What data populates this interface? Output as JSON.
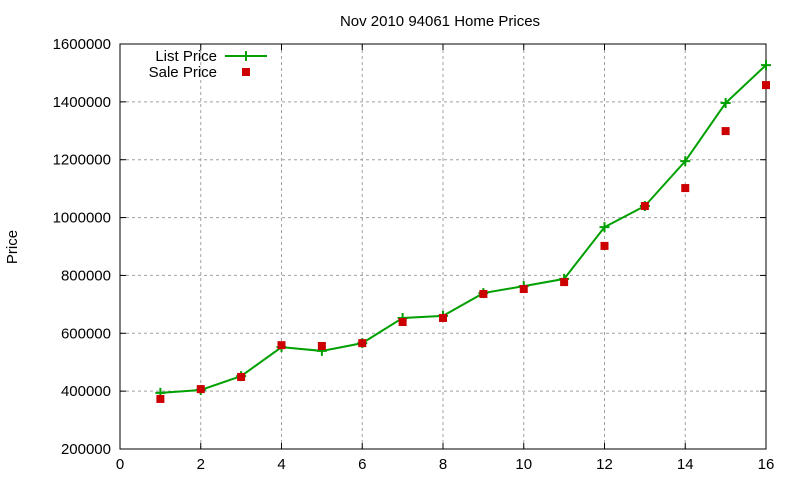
{
  "chart_data": {
    "type": "line",
    "title": "Nov 2010 94061 Home Prices",
    "xlabel": "",
    "ylabel": "Price",
    "xlim": [
      0,
      16
    ],
    "ylim": [
      200000,
      1600000
    ],
    "xticks": [
      0,
      2,
      4,
      6,
      8,
      10,
      12,
      14,
      16
    ],
    "yticks": [
      200000,
      400000,
      600000,
      800000,
      1000000,
      1200000,
      1400000,
      1600000
    ],
    "grid": true,
    "legend_position": "top-left",
    "x": [
      1,
      2,
      3,
      4,
      5,
      6,
      7,
      8,
      9,
      10,
      11,
      12,
      13,
      14,
      15,
      16
    ],
    "series": [
      {
        "name": "List Price",
        "style": "linespoints",
        "marker": "plus",
        "color": "#00a000",
        "values": [
          394000,
          404000,
          452000,
          552000,
          539000,
          566000,
          653000,
          660000,
          739000,
          763000,
          788000,
          967000,
          1040000,
          1195000,
          1396000,
          1527000
        ]
      },
      {
        "name": "Sale Price",
        "style": "points",
        "marker": "square",
        "color": "#cc0000",
        "values": [
          373000,
          407000,
          449000,
          559000,
          556000,
          566000,
          639000,
          653000,
          736000,
          753000,
          777000,
          902000,
          1040000,
          1102000,
          1299000,
          1458000
        ]
      }
    ]
  }
}
